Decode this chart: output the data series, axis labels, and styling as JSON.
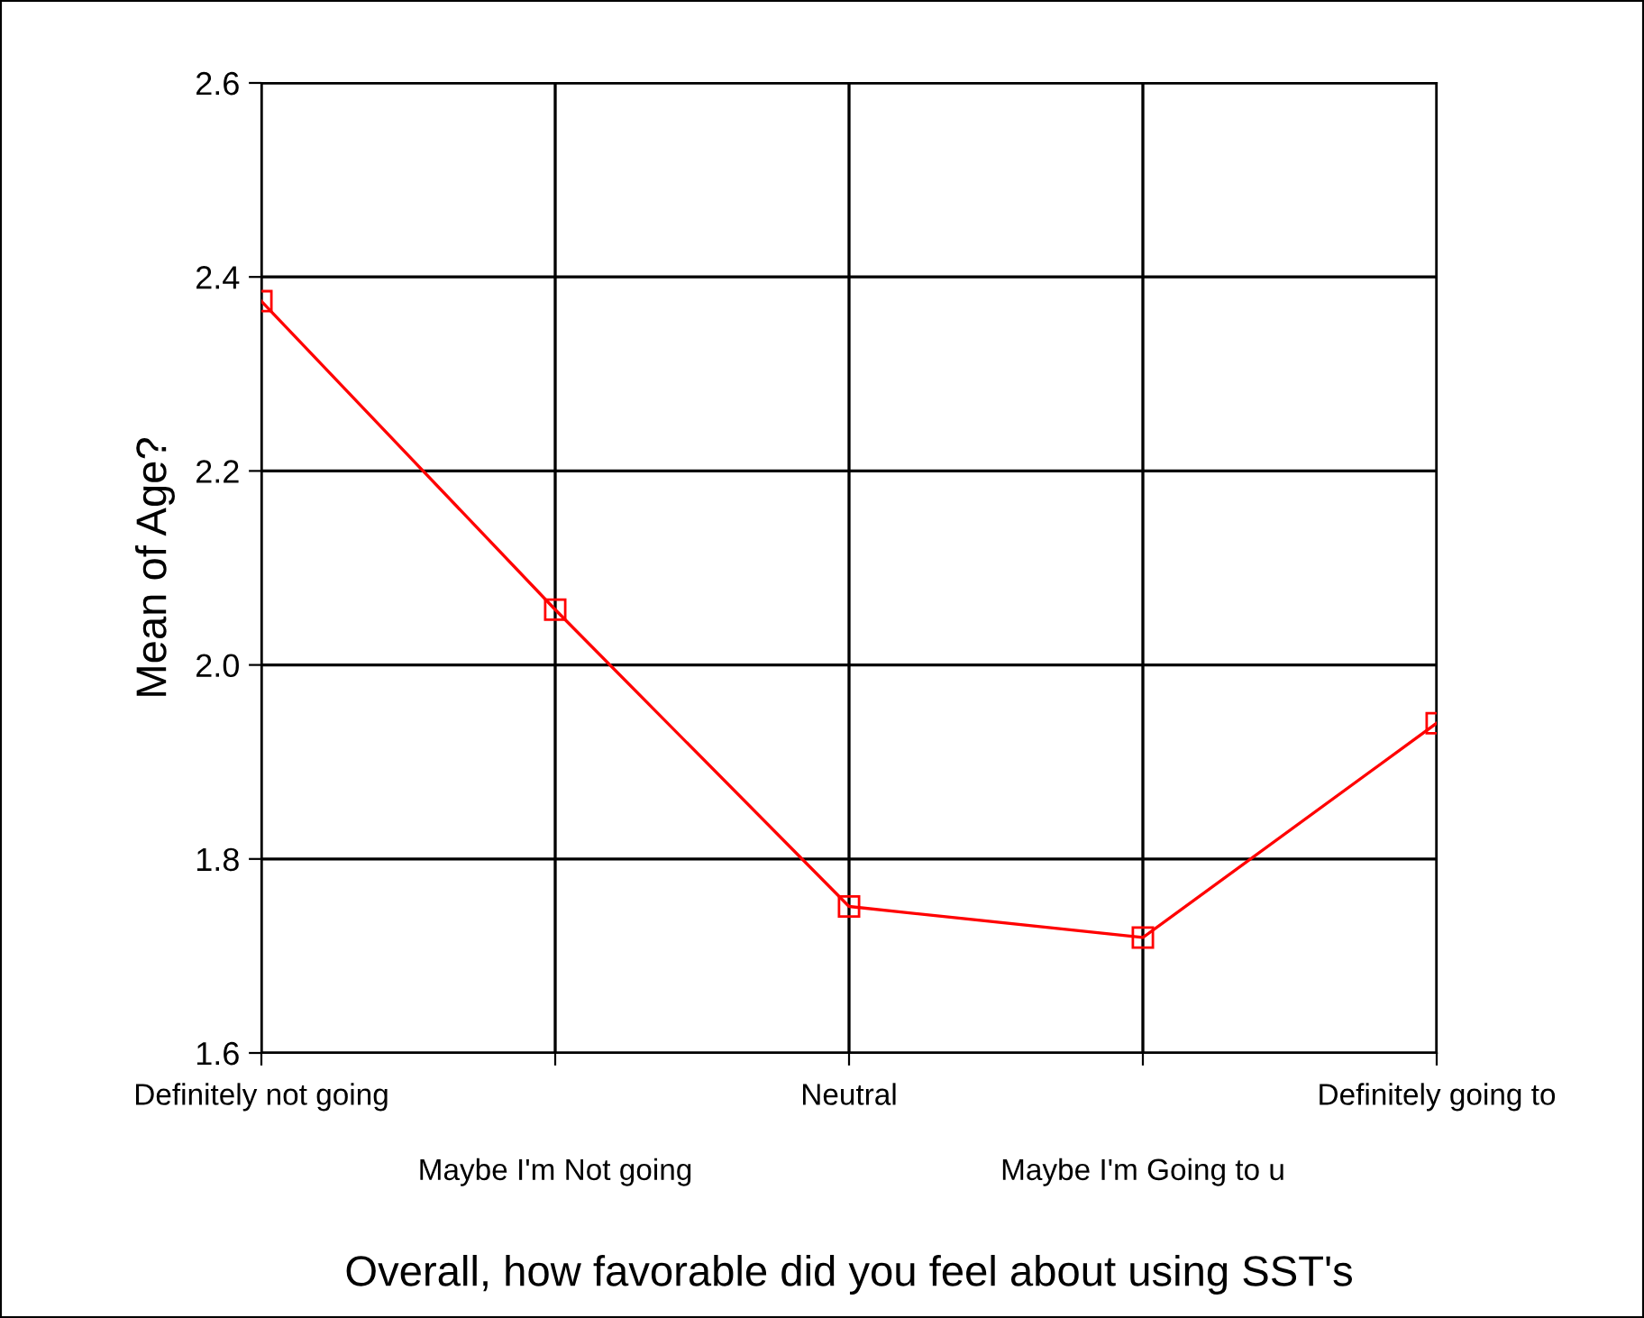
{
  "chart_data": {
    "type": "line",
    "xlabel": "Overall, how favorable did you feel about using SST's",
    "ylabel": "Mean of Age?",
    "categories": [
      "Definitely not going",
      "Maybe I'm Not going",
      "Neutral",
      "Maybe I'm Going to u",
      "Definitely going to"
    ],
    "series": [
      {
        "color": "#ff0000",
        "values": [
          2.375,
          2.057,
          1.751,
          1.719,
          1.94
        ]
      }
    ],
    "ylim": [
      1.6,
      2.6
    ],
    "yticks": [
      1.6,
      1.8,
      {
        "value": 2,
        "label": "2.0"
      },
      2.2,
      2.4,
      2.6
    ],
    "grid": true,
    "marker": "square",
    "line_style": "solid",
    "legend": false
  }
}
